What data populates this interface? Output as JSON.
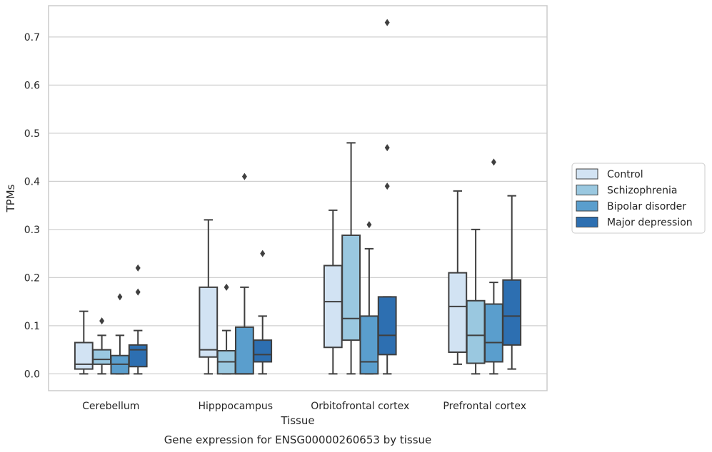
{
  "chart_data": {
    "type": "box",
    "title": "",
    "caption": "Gene expression for ENSG00000260653 by tissue",
    "xlabel": "Tissue",
    "ylabel": "TPMs",
    "ylim": [
      -0.035,
      0.765
    ],
    "yticks": [
      0.0,
      0.1,
      0.2,
      0.3,
      0.4,
      0.5,
      0.6,
      0.7
    ],
    "ytick_labels": [
      "0.0",
      "0.1",
      "0.2",
      "0.3",
      "0.4",
      "0.5",
      "0.6",
      "0.7"
    ],
    "grid": "horizontal",
    "legend_position": "right",
    "categories": [
      "Cerebellum",
      "Hipppocampus",
      "Orbitofrontal cortex",
      "Prefrontal cortex"
    ],
    "series": [
      {
        "name": "Control",
        "color": "#d2e3f3",
        "boxes": [
          {
            "whislo": 0.0,
            "q1": 0.01,
            "med": 0.02,
            "q3": 0.065,
            "whishi": 0.13,
            "fliers": []
          },
          {
            "whislo": 0.0,
            "q1": 0.035,
            "med": 0.05,
            "q3": 0.18,
            "whishi": 0.32,
            "fliers": []
          },
          {
            "whislo": 0.0,
            "q1": 0.055,
            "med": 0.15,
            "q3": 0.225,
            "whishi": 0.34,
            "fliers": []
          },
          {
            "whislo": 0.02,
            "q1": 0.045,
            "med": 0.14,
            "q3": 0.21,
            "whishi": 0.38,
            "fliers": []
          }
        ]
      },
      {
        "name": "Schizophrenia",
        "color": "#9ac8e0",
        "boxes": [
          {
            "whislo": 0.0,
            "q1": 0.02,
            "med": 0.03,
            "q3": 0.05,
            "whishi": 0.08,
            "fliers": [
              0.11
            ]
          },
          {
            "whislo": 0.0,
            "q1": 0.0,
            "med": 0.025,
            "q3": 0.048,
            "whishi": 0.09,
            "fliers": [
              0.18
            ]
          },
          {
            "whislo": 0.0,
            "q1": 0.07,
            "med": 0.115,
            "q3": 0.288,
            "whishi": 0.48,
            "fliers": []
          },
          {
            "whislo": 0.0,
            "q1": 0.022,
            "med": 0.08,
            "q3": 0.152,
            "whishi": 0.3,
            "fliers": []
          }
        ]
      },
      {
        "name": "Bipolar disorder",
        "color": "#5a9ecd",
        "boxes": [
          {
            "whislo": 0.0,
            "q1": 0.0,
            "med": 0.02,
            "q3": 0.038,
            "whishi": 0.08,
            "fliers": [
              0.16
            ]
          },
          {
            "whislo": 0.0,
            "q1": 0.0,
            "med": 0.0,
            "q3": 0.097,
            "whishi": 0.18,
            "fliers": [
              0.41
            ]
          },
          {
            "whislo": 0.0,
            "q1": 0.0,
            "med": 0.025,
            "q3": 0.12,
            "whishi": 0.26,
            "fliers": [
              0.31
            ]
          },
          {
            "whislo": 0.0,
            "q1": 0.025,
            "med": 0.065,
            "q3": 0.145,
            "whishi": 0.19,
            "fliers": [
              0.44
            ]
          }
        ]
      },
      {
        "name": "Major depression",
        "color": "#2d6fb1",
        "boxes": [
          {
            "whislo": 0.0,
            "q1": 0.015,
            "med": 0.05,
            "q3": 0.06,
            "whishi": 0.09,
            "fliers": [
              0.17,
              0.22
            ]
          },
          {
            "whislo": 0.0,
            "q1": 0.025,
            "med": 0.04,
            "q3": 0.07,
            "whishi": 0.12,
            "fliers": [
              0.25
            ]
          },
          {
            "whislo": 0.0,
            "q1": 0.04,
            "med": 0.08,
            "q3": 0.16,
            "whishi": 0.16,
            "fliers": [
              0.39,
              0.47,
              0.73
            ]
          },
          {
            "whislo": 0.01,
            "q1": 0.06,
            "med": 0.12,
            "q3": 0.195,
            "whishi": 0.37,
            "fliers": []
          }
        ]
      }
    ]
  }
}
